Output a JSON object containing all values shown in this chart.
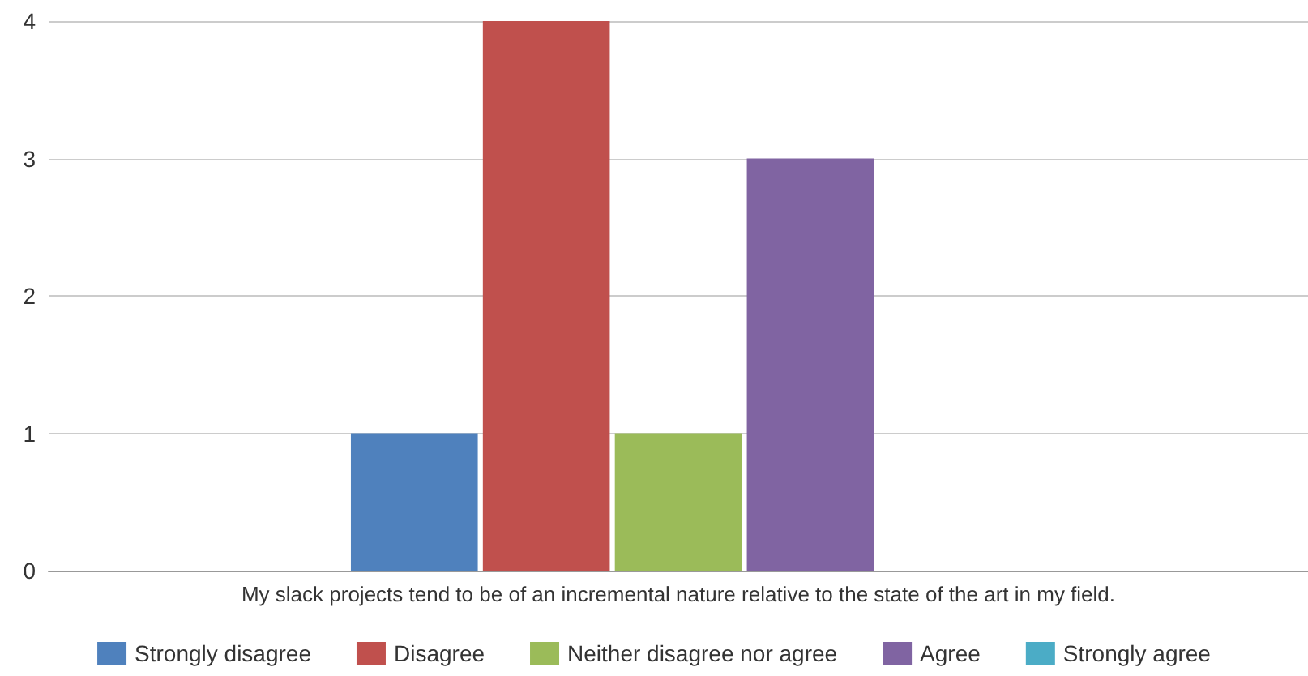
{
  "chart_data": {
    "type": "bar",
    "categories": [
      "My slack projects tend to be of an incremental nature relative to the state of the art in my field."
    ],
    "series": [
      {
        "name": "Strongly disagree",
        "color": "#4f81bd",
        "values": [
          1
        ]
      },
      {
        "name": "Disagree",
        "color": "#c0504d",
        "values": [
          4
        ]
      },
      {
        "name": "Neither disagree nor agree",
        "color": "#9bbb59",
        "values": [
          1
        ]
      },
      {
        "name": "Agree",
        "color": "#8064a2",
        "values": [
          3
        ]
      },
      {
        "name": "Strongly agree",
        "color": "#4bacc6",
        "values": [
          0
        ]
      }
    ],
    "ylim": [
      0,
      4
    ],
    "yticks": [
      0,
      1,
      2,
      3,
      4
    ],
    "grid": "y",
    "legend": "bottom"
  }
}
